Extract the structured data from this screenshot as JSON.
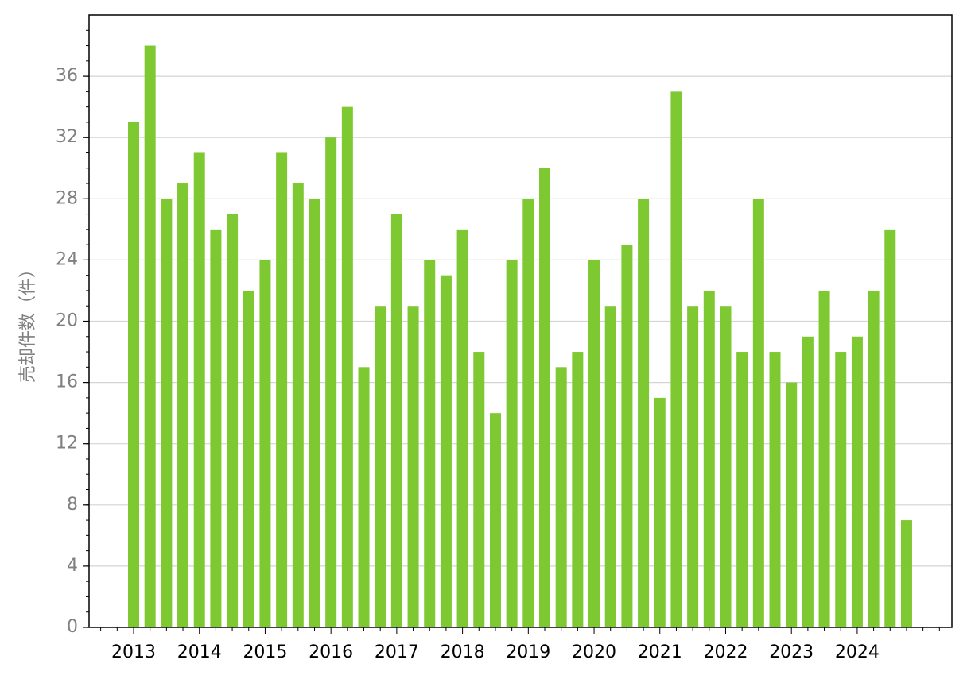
{
  "chart_data": {
    "type": "bar",
    "y_label": "売却件数（件）",
    "categories": [
      "2013",
      null,
      null,
      null,
      "2014",
      null,
      null,
      null,
      "2015",
      null,
      null,
      null,
      "2016",
      null,
      null,
      null,
      "2017",
      null,
      null,
      null,
      "2018",
      null,
      null,
      null,
      "2019",
      null,
      null,
      null,
      "2020",
      null,
      null,
      null,
      "2021",
      null,
      null,
      null,
      "2022",
      null,
      null,
      null,
      "2023",
      null,
      null,
      null,
      "2024",
      null,
      null,
      null
    ],
    "values": [
      33,
      38,
      28,
      29,
      31,
      26,
      27,
      22,
      24,
      31,
      29,
      28,
      32,
      34,
      17,
      21,
      27,
      21,
      24,
      23,
      26,
      18,
      14,
      24,
      28,
      30,
      17,
      18,
      24,
      21,
      25,
      28,
      15,
      35,
      21,
      22,
      21,
      18,
      28,
      18,
      16,
      19,
      22,
      18,
      19,
      22,
      26,
      7
    ],
    "color": "#7ec832",
    "ylim": [
      0,
      40
    ],
    "yticks": [
      0,
      4,
      8,
      12,
      16,
      20,
      24,
      28,
      32,
      36
    ],
    "grid": true
  }
}
